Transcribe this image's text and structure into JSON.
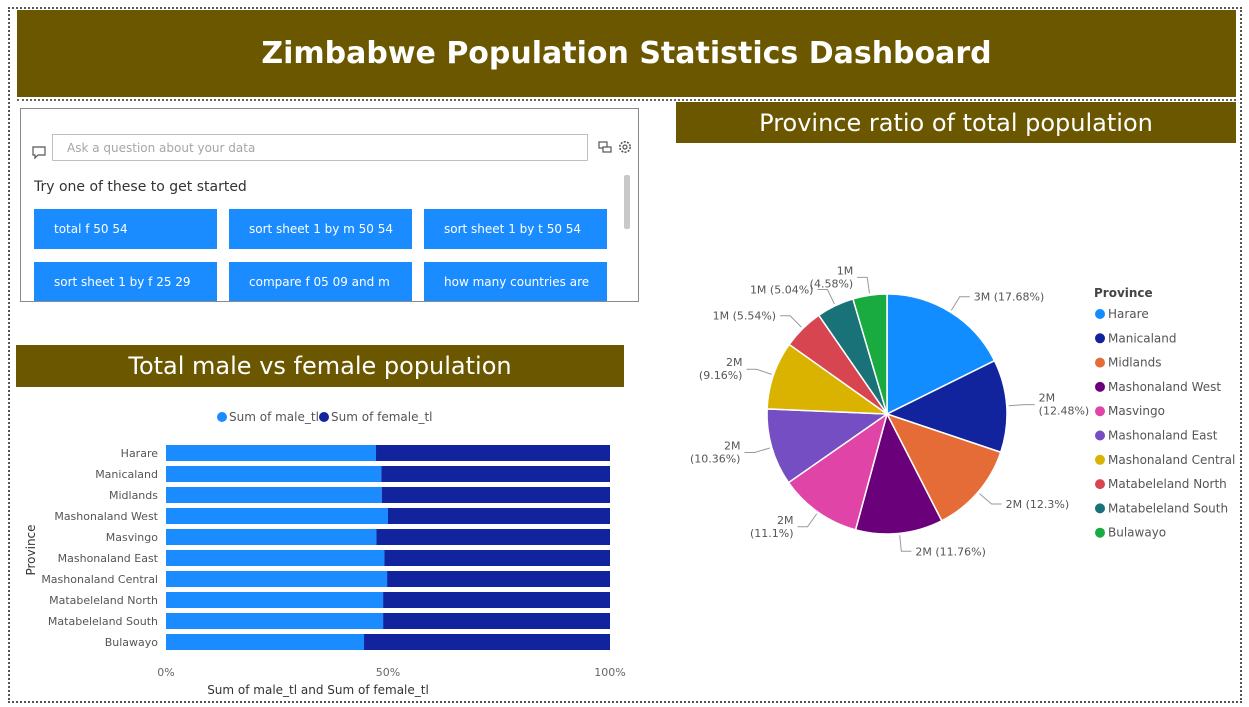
{
  "dashboard": {
    "title": "Zimbabwe Population Statistics Dashboard"
  },
  "qa": {
    "placeholder": "Ask a question about your data",
    "hint": "Try one of these to get started",
    "suggestions": [
      "total f 50 54",
      "sort sheet 1 by m 50 54",
      "sort sheet 1 by t 50 54",
      "sort sheet 1 by f 25 29",
      "compare f 05 09 and m",
      "how many countries are"
    ]
  },
  "bar_section": {
    "title": "Total male vs female population"
  },
  "pie_section": {
    "title": "Province ratio of total population"
  },
  "colors": {
    "header_bg": "#6B5700",
    "male": "#1A8CFF",
    "female": "#12239E",
    "button_bg": "#1A8CFF"
  },
  "chart_data": [
    {
      "type": "bar",
      "stacked": "100%",
      "orientation": "horizontal",
      "legend": "top",
      "categories": [
        "Harare",
        "Manicaland",
        "Midlands",
        "Mashonaland West",
        "Masvingo",
        "Mashonaland East",
        "Mashonaland Central",
        "Matabeleland North",
        "Matabeleland South",
        "Bulawayo"
      ],
      "series": [
        {
          "name": "Sum of male_tl",
          "values": [
            47.3,
            48.5,
            48.6,
            50.0,
            47.4,
            49.2,
            49.8,
            48.9,
            48.9,
            44.6
          ],
          "color": "#1A8CFF"
        },
        {
          "name": "Sum of female_tl",
          "values": [
            52.7,
            51.5,
            51.4,
            50.0,
            52.6,
            50.8,
            50.2,
            51.1,
            51.1,
            55.4
          ],
          "color": "#12239E"
        }
      ],
      "xlabel": "Sum of male_tl and Sum of female_tl",
      "ylabel": "Province",
      "xticks": [
        "0%",
        "50%",
        "100%"
      ],
      "xlim": [
        0,
        100
      ]
    },
    {
      "type": "pie",
      "legend_title": "Province",
      "legend": "right",
      "slices": [
        {
          "name": "Harare",
          "percent": 17.68,
          "label": "3M (17.68%)",
          "color": "#118DFF"
        },
        {
          "name": "Manicaland",
          "percent": 12.48,
          "label": "2M (12.48%)",
          "color": "#12239E"
        },
        {
          "name": "Midlands",
          "percent": 12.3,
          "label": "2M (12.3%)",
          "color": "#E66C37"
        },
        {
          "name": "Mashonaland West",
          "percent": 11.76,
          "label": "2M (11.76%)",
          "color": "#6B007B"
        },
        {
          "name": "Masvingo",
          "percent": 11.1,
          "label": "2M (11.1%)",
          "color": "#E044A7"
        },
        {
          "name": "Mashonaland East",
          "percent": 10.36,
          "label": "2M (10.36%)",
          "color": "#744EC2"
        },
        {
          "name": "Mashonaland Central",
          "percent": 9.16,
          "label": "2M (9.16%)",
          "color": "#D9B300"
        },
        {
          "name": "Matabeleland North",
          "percent": 5.54,
          "label": "1M (5.54%)",
          "color": "#D64550"
        },
        {
          "name": "Matabeleland South",
          "percent": 5.04,
          "label": "1M (5.04%)",
          "color": "#197278"
        },
        {
          "name": "Bulawayo",
          "percent": 4.58,
          "label": "1M (4.58%)",
          "color": "#1AAB40"
        }
      ]
    }
  ]
}
